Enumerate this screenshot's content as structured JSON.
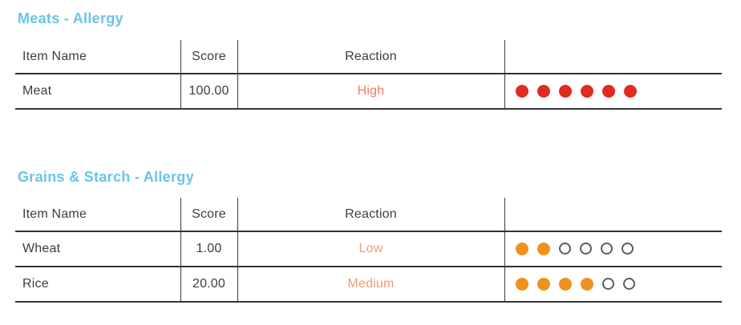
{
  "colors": {
    "section_title_blue": "#6bc4e8",
    "table_text_dark": "#3d3d3d",
    "line_dark": "#333333",
    "high_reaction_text": "#f5775e",
    "medium_low_reaction_text": "#f29b72",
    "red_dot": "#e02b20",
    "orange_dot": "#ef921d",
    "empty_dot_border": "#595d60"
  },
  "sections": [
    {
      "title": "Meats - Allergy",
      "columns": {
        "item": "Item Name",
        "score": "Score",
        "reaction": "Reaction",
        "dots": ""
      },
      "rows": [
        {
          "item": "Meat",
          "score": "100.00",
          "reaction": "High",
          "reaction_color": "#f5775e",
          "dots_filled": 6,
          "dots_total": 6,
          "dot_color": "#e02b20"
        }
      ]
    },
    {
      "title": "Grains & Starch - Allergy",
      "columns": {
        "item": "Item Name",
        "score": "Score",
        "reaction": "Reaction",
        "dots": ""
      },
      "rows": [
        {
          "item": "Wheat",
          "score": "1.00",
          "reaction": "Low",
          "reaction_color": "#f29b72",
          "dots_filled": 2,
          "dots_total": 6,
          "dot_color": "#ef921d"
        },
        {
          "item": "Rice",
          "score": "20.00",
          "reaction": "Medium",
          "reaction_color": "#f29b72",
          "dots_filled": 4,
          "dots_total": 6,
          "dot_color": "#ef921d"
        }
      ]
    }
  ]
}
